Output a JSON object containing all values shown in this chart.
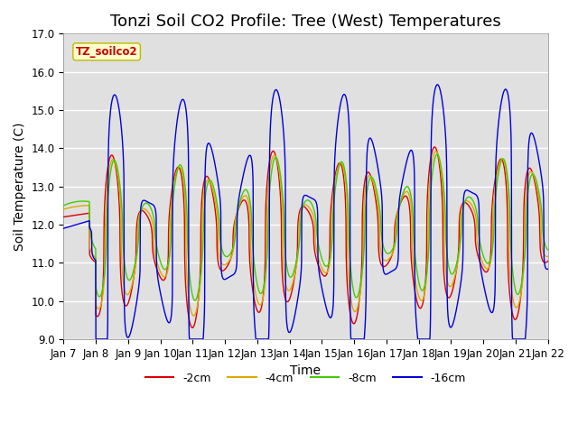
{
  "title": "Tonzi Soil CO2 Profile: Tree (West) Temperatures",
  "xlabel": "Time",
  "ylabel": "Soil Temperature (C)",
  "ylim": [
    9.0,
    17.0
  ],
  "yticks": [
    9.0,
    10.0,
    11.0,
    12.0,
    13.0,
    14.0,
    15.0,
    16.0,
    17.0
  ],
  "xtick_labels": [
    "Jan 7",
    "Jan 8",
    "Jan 9",
    "Jan 10",
    "Jan 11",
    "Jan 12",
    "Jan 13",
    "Jan 14",
    "Jan 15",
    "Jan 16",
    "Jan 17",
    "Jan 18",
    "Jan 19",
    "Jan 20",
    "Jan 21",
    "Jan 22"
  ],
  "legend_label": "TZ_soilco2",
  "legend_box_color": "#ffffcc",
  "legend_box_edge": "#bbbb00",
  "line_2cm": {
    "color": "#dd0000",
    "lw": 1.0
  },
  "line_4cm": {
    "color": "#ddaa00",
    "lw": 1.0
  },
  "line_8cm": {
    "color": "#44cc00",
    "lw": 1.0
  },
  "line_16cm": {
    "color": "#0000dd",
    "lw": 1.0
  },
  "bg_color": "#e0e0e0",
  "title_fontsize": 13,
  "axis_label_fontsize": 10,
  "tick_fontsize": 8.5
}
